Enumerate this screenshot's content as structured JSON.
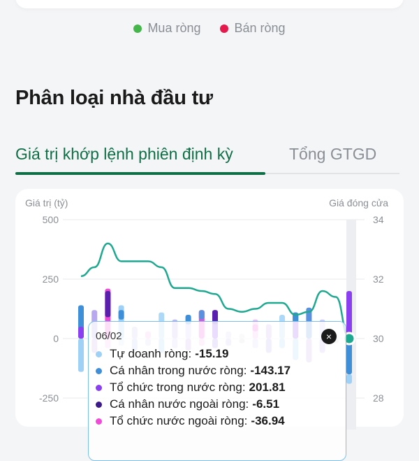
{
  "legend": [
    {
      "label": "Mua ròng",
      "color": "#45b649"
    },
    {
      "label": "Bán ròng",
      "color": "#e5194b"
    }
  ],
  "section_title": "Phân loại nhà đầu tư",
  "tabs": [
    {
      "label": "Giá trị khớp lệnh phiên định kỳ",
      "active": true
    },
    {
      "label": "Tổng GTGD",
      "active": false
    }
  ],
  "chart": {
    "left_axis_title": "Giá trị (tỷ)",
    "right_axis_title": "Giá đóng cửa"
  },
  "chart_data": {
    "type": "bar",
    "left_ticks": [
      "500",
      "250",
      "0",
      "-250"
    ],
    "right_ticks": [
      "34",
      "32",
      "30",
      "28"
    ],
    "ylim": [
      -250,
      500
    ],
    "y2lim": [
      28,
      34
    ],
    "series": [
      {
        "name": "Tự doanh ròng",
        "color": "#9fd0f5"
      },
      {
        "name": "Cá nhân trong nước ròng",
        "color": "#3f8fd8"
      },
      {
        "name": "Tổ chức trong nước ròng",
        "color": "#8a3ff0"
      },
      {
        "name": "Cá nhân nước ngoài ròng",
        "color": "#5a1fae"
      },
      {
        "name": "Tổ chức nước ngoài ròng",
        "color": "#f24ad8"
      }
    ],
    "bars": [
      {
        "pos": [
          [
            0,
            140,
            "#3f8fd8"
          ],
          [
            0,
            50,
            "#8a3ff0"
          ]
        ],
        "neg": [
          [
            0,
            -140,
            "#9fd0f5"
          ]
        ]
      },
      {
        "pos": [
          [
            0,
            120,
            "#b8a8f0"
          ]
        ],
        "neg": [
          [
            0,
            -60,
            "#c9a8ef"
          ]
        ]
      },
      {
        "pos": [
          [
            0,
            210,
            "#f24ad8"
          ],
          [
            90,
            200,
            "#5a1fae"
          ]
        ],
        "neg": [
          [
            0,
            -40,
            "#f6b6ee"
          ]
        ]
      },
      {
        "pos": [
          [
            0,
            140,
            "#9fd0f5"
          ],
          [
            80,
            120,
            "#3f8fd8"
          ]
        ],
        "neg": [
          [
            0,
            -30,
            "#cfe6fa"
          ]
        ]
      },
      {
        "pos": [
          [
            0,
            50,
            "#c9c0f2"
          ]
        ],
        "neg": [
          [
            0,
            -50,
            "#b8c8f2"
          ]
        ]
      },
      {
        "pos": [
          [
            0,
            30,
            "#f5b8ef"
          ]
        ],
        "neg": [
          [
            0,
            -30,
            "#dcd4f6"
          ]
        ]
      },
      {
        "pos": [
          [
            0,
            110,
            "#aed8f7"
          ]
        ],
        "neg": [
          [
            0,
            -60,
            "#9fd0f5"
          ]
        ]
      },
      {
        "pos": [
          [
            0,
            80,
            "#c2b2f3"
          ]
        ],
        "neg": [
          [
            0,
            -40,
            "#d4cbf7"
          ]
        ]
      },
      {
        "pos": [
          [
            0,
            100,
            "#d3c6f6"
          ],
          [
            60,
            100,
            "#3f8fd8"
          ]
        ],
        "neg": [
          [
            0,
            -50,
            "#c9a8ef"
          ]
        ]
      },
      {
        "pos": [
          [
            0,
            120,
            "#f24ad8"
          ],
          [
            80,
            120,
            "#5a90e0"
          ]
        ],
        "neg": [
          [
            0,
            -30,
            "#f6b6ee"
          ]
        ]
      },
      {
        "pos": [
          [
            0,
            120,
            "#8a3ff0"
          ],
          [
            60,
            120,
            "#5a1fae"
          ]
        ],
        "neg": [
          [
            0,
            -40,
            "#a88ae8"
          ]
        ]
      },
      {
        "pos": [
          [
            0,
            30,
            "#dcd4f6"
          ]
        ],
        "neg": [
          [
            0,
            -30,
            "#c9c0f2"
          ]
        ]
      },
      {
        "pos": [
          [
            0,
            20,
            "#e0e0e0"
          ]
        ],
        "neg": [
          [
            0,
            -20,
            "#d8d8d8"
          ]
        ]
      },
      {
        "pos": [
          [
            0,
            80,
            "#f5b8ef"
          ],
          [
            30,
            60,
            "#f24ad8"
          ]
        ],
        "neg": [
          [
            0,
            -40,
            "#dcd4f6"
          ]
        ]
      },
      {
        "pos": [
          [
            0,
            60,
            "#c9a8ef"
          ]
        ],
        "neg": [
          [
            0,
            -60,
            "#b8a8f0"
          ]
        ]
      },
      {
        "pos": [
          [
            0,
            100,
            "#aed8f7"
          ]
        ],
        "neg": [
          [
            0,
            -40,
            "#9fd0f5"
          ]
        ]
      },
      {
        "pos": [
          [
            0,
            110,
            "#8a3ff0"
          ],
          [
            70,
            110,
            "#3f8fd8"
          ]
        ],
        "neg": [
          [
            0,
            -90,
            "#9fd0f5"
          ]
        ]
      },
      {
        "pos": [
          [
            0,
            130,
            "#5a90e0"
          ]
        ],
        "neg": [
          [
            0,
            -100,
            "#c9a8ef"
          ]
        ]
      },
      {
        "pos": [
          [
            0,
            80,
            "#d3c6f6"
          ]
        ],
        "neg": [
          [
            0,
            -60,
            "#c2b2f3"
          ]
        ]
      },
      {
        "pos": [
          [
            0,
            20,
            "#e0e0e0"
          ]
        ],
        "neg": [
          [
            0,
            -20,
            "#d8d8d8"
          ]
        ]
      },
      {
        "pos": [
          [
            0,
            200,
            "#8a3ff0"
          ]
        ],
        "neg": [
          [
            0,
            -150,
            "#3f8fd8"
          ],
          [
            -150,
            -190,
            "#9fd0f5"
          ]
        ]
      }
    ],
    "close_price": [
      32.1,
      32.4,
      33.2,
      32.6,
      32.6,
      32.6,
      32.4,
      31.7,
      31.7,
      31.6,
      31.5,
      31.0,
      30.9,
      31.0,
      31.2,
      31.2,
      30.8,
      30.9,
      31.6,
      31.4,
      30.0
    ]
  },
  "tooltip": {
    "date": "06/02",
    "close_label": "×",
    "rows": [
      {
        "label": "Tự doanh ròng:",
        "value": "-15.19",
        "color": "#9fd0f5"
      },
      {
        "label": "Cá nhân trong nước ròng:",
        "value": "-143.17",
        "color": "#3f8fd8"
      },
      {
        "label": "Tổ chức trong nước ròng:",
        "value": "201.81",
        "color": "#8a3ff0"
      },
      {
        "label": "Cá nhân nước ngoài ròng:",
        "value": "-6.51",
        "color": "#3d1a8a"
      },
      {
        "label": "Tổ chức nước ngoài ròng:",
        "value": "-36.94",
        "color": "#f24ad8"
      }
    ]
  }
}
